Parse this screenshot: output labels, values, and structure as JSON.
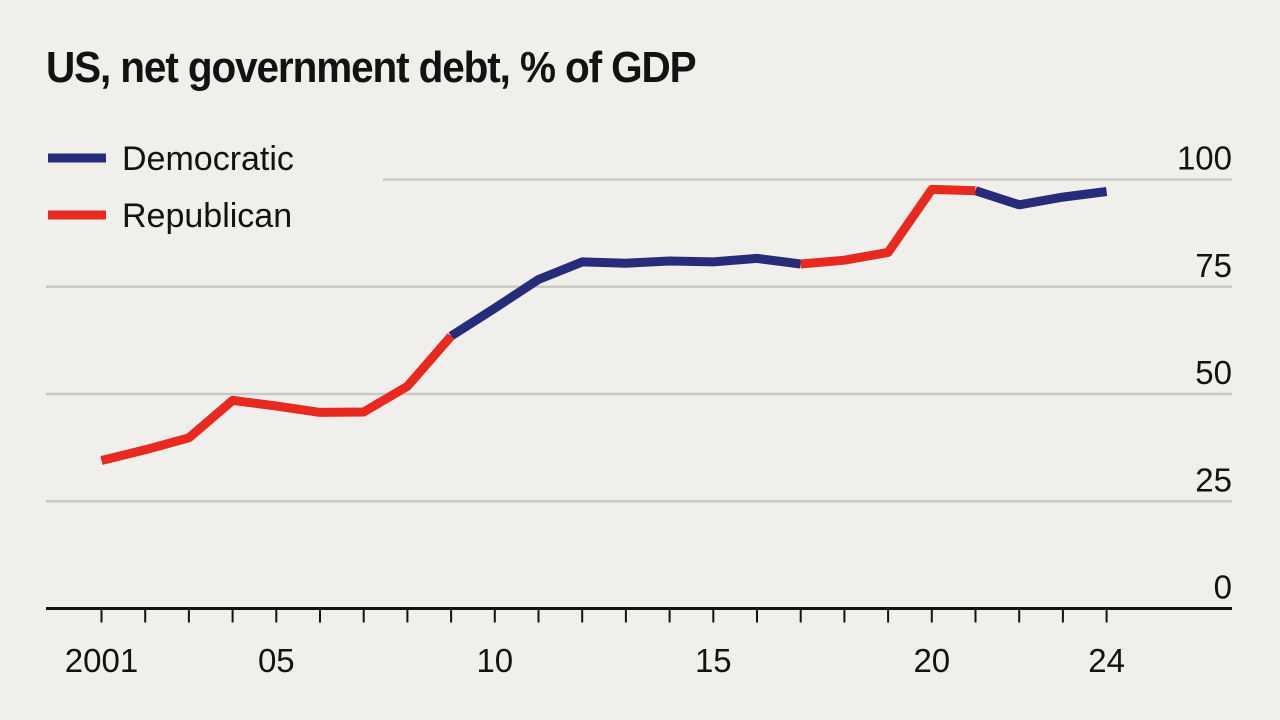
{
  "chart_data": {
    "type": "line",
    "title": "US, net government debt, % of GDP",
    "xlabel": "",
    "ylabel": "",
    "x_tick_labels": [
      {
        "value": 2001,
        "label": "2001"
      },
      {
        "value": 2005,
        "label": "05"
      },
      {
        "value": 2010,
        "label": "10"
      },
      {
        "value": 2015,
        "label": "15"
      },
      {
        "value": 2020,
        "label": "20"
      },
      {
        "value": 2024,
        "label": "24"
      }
    ],
    "y_tick_labels": [
      {
        "value": 0,
        "label": "0"
      },
      {
        "value": 25,
        "label": "25"
      },
      {
        "value": 50,
        "label": "50"
      },
      {
        "value": 75,
        "label": "75"
      },
      {
        "value": 100,
        "label": "100"
      }
    ],
    "xlim": [
      2000,
      2027
    ],
    "ylim": [
      0,
      100
    ],
    "grid": "horizontal",
    "legend_position": "top-left",
    "years": [
      2001,
      2002,
      2003,
      2004,
      2005,
      2006,
      2007,
      2008,
      2009,
      2010,
      2011,
      2012,
      2013,
      2014,
      2015,
      2016,
      2017,
      2018,
      2019,
      2020,
      2021,
      2022,
      2023,
      2024
    ],
    "values": [
      34.5,
      37,
      39.8,
      48.5,
      47.2,
      45.7,
      45.8,
      51.8,
      63.5,
      70,
      76.7,
      80.8,
      80.5,
      81,
      80.8,
      81.6,
      80.3,
      81.2,
      83,
      97.7,
      97.4,
      94.1,
      95.9,
      97.2
    ],
    "series": [
      {
        "name": "Democratic",
        "color": "#262b7a",
        "periods": [
          [
            2009,
            2017
          ],
          [
            2021,
            2024
          ]
        ]
      },
      {
        "name": "Republican",
        "color": "#e8291f",
        "periods": [
          [
            2001,
            2009
          ],
          [
            2017,
            2021
          ]
        ]
      }
    ]
  },
  "colors": {
    "background": "#f0efeb",
    "gridline": "#c9c9c7",
    "axis": "#121212",
    "text": "#121212"
  }
}
